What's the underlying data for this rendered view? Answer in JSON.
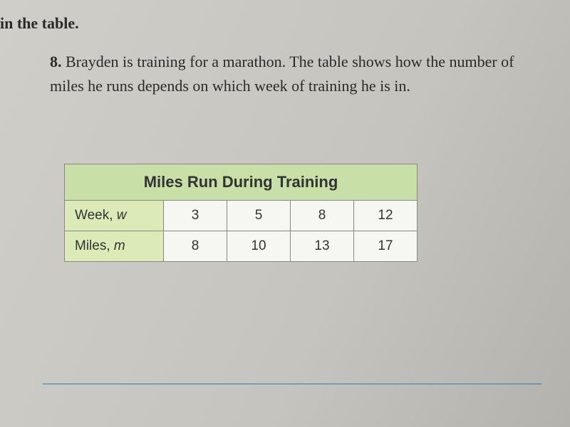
{
  "header": {
    "partial_text": "in the table."
  },
  "problem": {
    "number": "8.",
    "text": "Brayden is training for a marathon. The table shows how the number of miles he runs depends on which week of training he is in."
  },
  "table": {
    "title": "Miles Run During Training",
    "title_bg": "#c8e0a8",
    "label_bg": "#dceab8",
    "data_bg": "#f6f6f2",
    "border_color": "#888",
    "font_family": "Arial",
    "title_fontsize": 22,
    "cell_fontsize": 19,
    "rows": [
      {
        "label": "Week,",
        "var": "w",
        "values": [
          "3",
          "5",
          "8",
          "12"
        ]
      },
      {
        "label": "Miles,",
        "var": "m",
        "values": [
          "8",
          "10",
          "13",
          "17"
        ]
      }
    ]
  },
  "rule_color": "#2a7fb8"
}
